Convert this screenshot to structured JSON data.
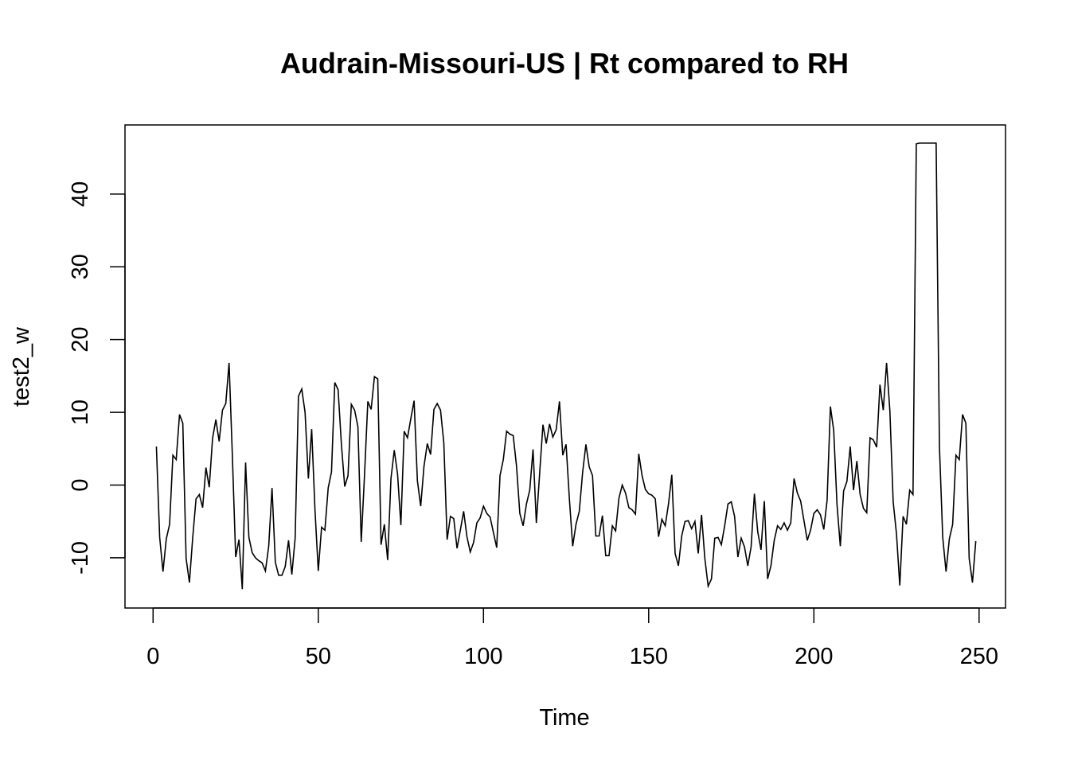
{
  "chart_data": {
    "type": "line",
    "title": "Audrain-Missouri-US | Rt compared to RH",
    "xlabel": "Time",
    "ylabel": "test2_w",
    "xlim": [
      -8.5,
      258
    ],
    "ylim": [
      -16.9,
      49.5
    ],
    "x_ticks": [
      0,
      50,
      100,
      150,
      200,
      250
    ],
    "y_ticks": [
      -10,
      0,
      10,
      20,
      30,
      40
    ],
    "grid": false,
    "legend": "none",
    "line_color": "#000000",
    "x_start": 1,
    "series": [
      {
        "values": [
          5.3,
          -7.2,
          -11.9,
          -7.4,
          -5.4,
          4.1,
          3.5,
          9.7,
          8.5,
          -10.1,
          -13.4,
          -7.2,
          -1.9,
          -1.3,
          -3.1,
          2.4,
          -0.3,
          6.4,
          9.0,
          6.0,
          10.3,
          11.2,
          16.8,
          4.0,
          -9.9,
          -7.5,
          -14.3,
          3.1,
          -7.2,
          -9.3,
          -10.0,
          -10.4,
          -10.7,
          -11.8,
          -8.4,
          -0.4,
          -10.6,
          -12.4,
          -12.4,
          -11.2,
          -7.6,
          -12.3,
          -7.3,
          12.2,
          13.2,
          10.0,
          0.9,
          7.7,
          -3.4,
          -11.8,
          -5.8,
          -6.2,
          -0.4,
          1.8,
          14.1,
          13.1,
          5.6,
          -0.2,
          1.3,
          11.1,
          10.3,
          8.0,
          -7.8,
          1.4,
          11.5,
          10.4,
          14.9,
          14.6,
          -8.2,
          -5.4,
          -10.3,
          0.9,
          4.8,
          1.5,
          -5.5,
          7.4,
          6.5,
          9.1,
          11.6,
          0.6,
          -2.9,
          2.6,
          5.7,
          4.2,
          10.4,
          11.2,
          10.3,
          5.8,
          -7.5,
          -4.3,
          -4.6,
          -8.7,
          -6.2,
          -3.6,
          -7.1,
          -9.2,
          -7.9,
          -5.2,
          -4.5,
          -2.9,
          -3.9,
          -4.4,
          -6.5,
          -8.6,
          1.3,
          3.5,
          7.4,
          7.0,
          6.8,
          2.6,
          -3.9,
          -5.6,
          -2.6,
          -0.7,
          4.9,
          -5.2,
          1.6,
          8.3,
          5.7,
          8.4,
          6.6,
          7.6,
          11.5,
          4.1,
          5.6,
          -1.9,
          -8.4,
          -5.4,
          -3.6,
          1.7,
          5.6,
          2.5,
          1.3,
          -7.0,
          -7.0,
          -4.2,
          -9.7,
          -9.7,
          -5.6,
          -6.3,
          -1.8,
          0.0,
          -1.1,
          -3.1,
          -3.4,
          -4.0,
          4.3,
          1.3,
          -0.6,
          -1.2,
          -1.4,
          -1.9,
          -7.1,
          -4.7,
          -5.6,
          -2.6,
          1.4,
          -9.4,
          -11.1,
          -7.0,
          -5.0,
          -4.9,
          -6.0,
          -5.0,
          -9.4,
          -4.1,
          -10.1,
          -13.9,
          -12.9,
          -7.3,
          -7.2,
          -8.2,
          -5.6,
          -2.6,
          -2.3,
          -4.3,
          -9.9,
          -7.3,
          -8.5,
          -11.1,
          -8.5,
          -1.2,
          -6.4,
          -8.9,
          -2.2,
          -12.9,
          -11.1,
          -7.6,
          -5.6,
          -6.1,
          -5.2,
          -6.2,
          -5.2,
          0.9,
          -1.1,
          -2.2,
          -4.9,
          -7.6,
          -6.2,
          -3.9,
          -3.4,
          -4.1,
          -6.1,
          -2.1,
          10.8,
          7.5,
          -2.7,
          -8.4,
          -0.8,
          0.5,
          5.3,
          -0.7,
          3.3,
          -1.3,
          -3.2,
          -3.8,
          6.5,
          6.2,
          5.2,
          13.8,
          10.3,
          16.8,
          10.2,
          -2.3,
          -6.7,
          -13.8,
          -4.3,
          -5.4,
          -0.7,
          -1.3,
          46.9,
          47.0,
          47.0,
          47.0,
          47.0,
          47.0,
          47.0,
          5.3,
          -7.2,
          -11.9,
          -7.4,
          -5.4,
          4.1,
          3.5,
          9.7,
          8.5,
          -10.1,
          -13.4,
          -7.7
        ]
      }
    ]
  }
}
